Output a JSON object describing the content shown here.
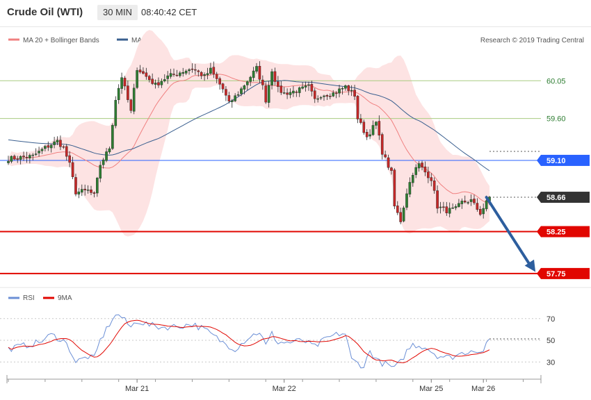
{
  "header": {
    "title": "Crude Oil (WTI)",
    "timeframe": "30 MIN",
    "time": "08:40:42 CET"
  },
  "legend": {
    "ma20": "MA 20 + Bollinger Bands",
    "ma50": "MA 50",
    "credit": "Research © 2019 Trading Central"
  },
  "rsi_legend": {
    "rsi": "RSI",
    "ma9": "9MA"
  },
  "colors": {
    "up": "#2e7d32",
    "down": "#c62828",
    "band_fill": "#fde3e3",
    "ma20": "#f08080",
    "ma50": "#3a5f8f",
    "support": "#e10600",
    "pivot": "#2962ff",
    "resistance": "#a8cc80",
    "current": "#333333",
    "rsi": "#6b8fd6",
    "rsi_ma": "#e10600"
  },
  "chart_data": [
    {
      "type": "candlestick",
      "ylim": [
        57.6,
        60.45
      ],
      "x_ticks": [
        {
          "label": "Mar 21",
          "index": 42
        },
        {
          "label": "Mar 22",
          "index": 90
        },
        {
          "label": "Mar 25",
          "index": 138
        },
        {
          "label": "Mar 26",
          "index": 155
        }
      ],
      "horizontal_levels": [
        {
          "value": 60.05,
          "label": "60.05",
          "style": "resistance"
        },
        {
          "value": 59.6,
          "label": "59.60",
          "style": "resistance"
        },
        {
          "value": 59.1,
          "label": "59.10",
          "style": "pivot"
        },
        {
          "value": 58.66,
          "label": "58.66",
          "style": "current"
        },
        {
          "value": 58.25,
          "label": "58.25",
          "style": "support"
        },
        {
          "value": 57.75,
          "label": "57.75",
          "style": "support"
        }
      ],
      "projection": {
        "from": {
          "index": 156,
          "value": 58.66
        },
        "to": {
          "index": 172,
          "value": 57.77
        }
      }
    },
    {
      "type": "line",
      "title": "RSI",
      "ylim": [
        18,
        82
      ],
      "y_ticks": [
        30,
        50,
        70
      ],
      "x_ticks": [
        "Mar 21",
        "Mar 22",
        "Mar 25",
        "Mar 26"
      ]
    }
  ]
}
